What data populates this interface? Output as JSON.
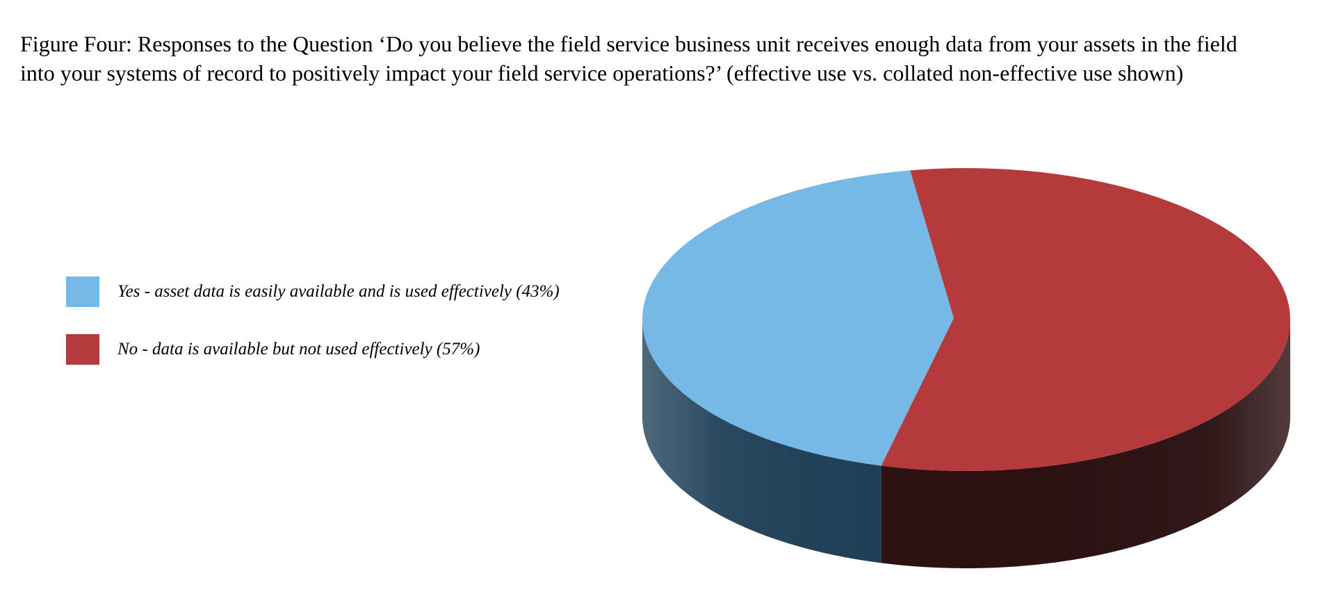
{
  "title": "Figure Four: Responses to the Question ‘Do you believe the field service business unit receives enough data from your assets in the field into your systems of record to positively impact your field service operations?’ (effective use vs. collated non-effective use shown)",
  "colors": {
    "yes": "#77b9e6",
    "yes_side": "#1d3e57",
    "no": "#b53a3c",
    "no_side": "#2b1112"
  },
  "chart_data": {
    "type": "pie",
    "style": "3d",
    "legend_position": "left",
    "categories": [
      "Yes - asset data is easily available and is used effectively (43%)",
      "No - data is available but not used effectively (57%)"
    ],
    "values": [
      43,
      57
    ]
  }
}
